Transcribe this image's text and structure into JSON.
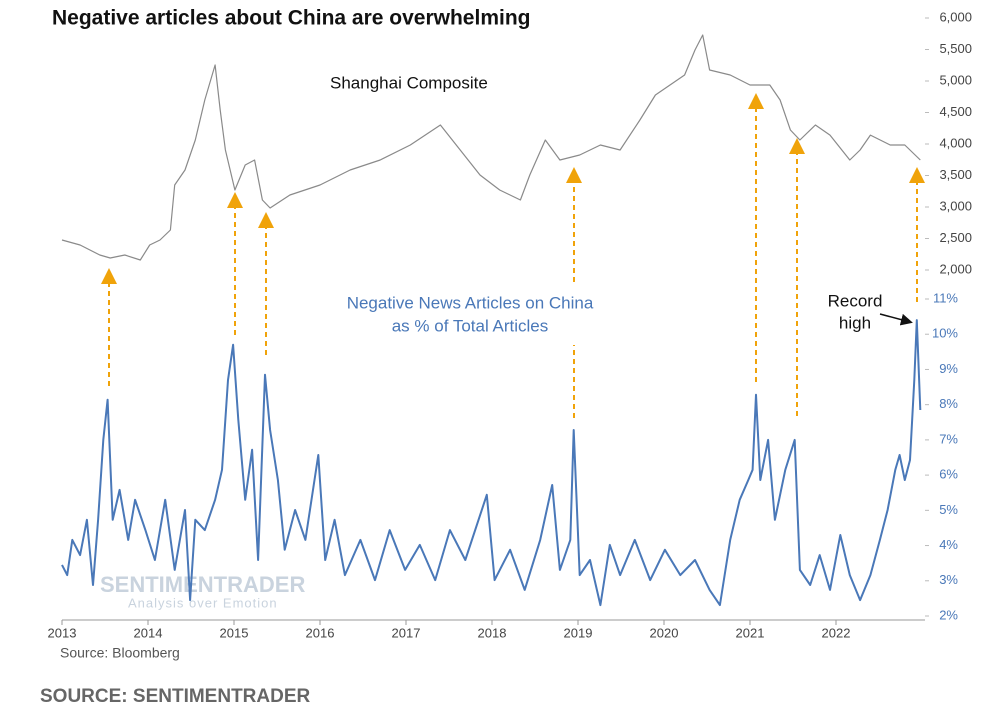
{
  "chart_data": {
    "type": "line",
    "title": "Negative articles about China are overwhelming",
    "annotations": {
      "shanghai": "Shanghai Composite",
      "news": [
        "Negative News Articles on China",
        "as % of Total Articles"
      ],
      "record": [
        "Record",
        "high"
      ],
      "source": "Source: Bloomberg",
      "watermark": [
        "SENTIMENTRADER",
        "Analysis over Emotion"
      ]
    },
    "footer": "SOURCE: SENTIMENTRADER",
    "xlim": [
      2013,
      2023
    ],
    "xticks": [
      2013,
      2014,
      2015,
      2016,
      2017,
      2018,
      2019,
      2020,
      2021,
      2022
    ],
    "ylim": [
      2,
      11
    ],
    "yticks": [
      {
        "value": 2,
        "label": "2%"
      },
      {
        "value": 3,
        "label": "3%"
      },
      {
        "value": 4,
        "label": "4%"
      },
      {
        "value": 5,
        "label": "5%"
      },
      {
        "value": 6,
        "label": "6%"
      },
      {
        "value": 7,
        "label": "7%"
      },
      {
        "value": 8,
        "label": "8%"
      },
      {
        "value": 9,
        "label": "9%"
      },
      {
        "value": 10,
        "label": "10%"
      },
      {
        "value": 11,
        "label": "11%"
      }
    ],
    "y2lim": [
      2000,
      6000
    ],
    "y2ticks": [
      {
        "value": 2000,
        "label": "2,000"
      },
      {
        "value": 2500,
        "label": "2,500"
      },
      {
        "value": 3000,
        "label": "3,000"
      },
      {
        "value": 3500,
        "label": "3,500"
      },
      {
        "value": 4000,
        "label": "4,000"
      },
      {
        "value": 4500,
        "label": "4,500"
      },
      {
        "value": 5000,
        "label": "5,000"
      },
      {
        "value": 5500,
        "label": "5,500"
      },
      {
        "value": 6000,
        "label": "6,000"
      }
    ],
    "series": [
      {
        "name": "Shanghai Composite",
        "color": "#8a8a8a",
        "axis": "y2",
        "x": [
          2013.0,
          2013.21,
          2013.44,
          2013.56,
          2013.73,
          2013.91,
          2014.02,
          2014.14,
          2014.26,
          2014.31,
          2014.43,
          2014.55,
          2014.66,
          2014.78,
          2014.84,
          2014.9,
          2015.01,
          2015.13,
          2015.24,
          2015.33,
          2015.42,
          2015.65,
          2016.0,
          2016.35,
          2016.7,
          2017.05,
          2017.4,
          2017.63,
          2017.86,
          2018.09,
          2018.33,
          2018.44,
          2018.62,
          2018.79,
          2019.02,
          2019.26,
          2019.49,
          2019.72,
          2019.9,
          2020.07,
          2020.24,
          2020.36,
          2020.45,
          2020.53,
          2020.77,
          2021.0,
          2021.23,
          2021.35,
          2021.47,
          2021.58,
          2021.76,
          2021.93,
          2022.16,
          2022.28,
          2022.4,
          2022.63,
          2022.8,
          2022.98
        ],
        "values": [
          2476,
          2397,
          2238,
          2190,
          2238,
          2159,
          2397,
          2476,
          2635,
          3349,
          3587,
          4063,
          4698,
          5254,
          4539,
          3905,
          3270,
          3667,
          3746,
          3111,
          2984,
          3190,
          3349,
          3587,
          3746,
          3984,
          4301,
          3905,
          3508,
          3270,
          3111,
          3508,
          4063,
          3746,
          3825,
          3984,
          3905,
          4381,
          4777,
          4936,
          5095,
          5492,
          5730,
          5175,
          5095,
          4936,
          4936,
          4698,
          4222,
          4063,
          4301,
          4142,
          3746,
          3905,
          4142,
          3984,
          3984,
          3746
        ]
      },
      {
        "name": "Negative News Articles on China as % of Total Articles",
        "color": "#4a78b8",
        "axis": "y",
        "x": [
          2013.0,
          2013.06,
          2013.12,
          2013.21,
          2013.29,
          2013.36,
          2013.42,
          2013.48,
          2013.53,
          2013.59,
          2013.67,
          2013.77,
          2013.85,
          2013.97,
          2014.08,
          2014.2,
          2014.31,
          2014.43,
          2014.49,
          2014.55,
          2014.66,
          2014.78,
          2014.86,
          2014.93,
          2014.99,
          2015.05,
          2015.13,
          2015.21,
          2015.28,
          2015.36,
          2015.42,
          2015.51,
          2015.59,
          2015.71,
          2015.83,
          2015.98,
          2016.06,
          2016.17,
          2016.29,
          2016.47,
          2016.64,
          2016.81,
          2016.99,
          2017.16,
          2017.34,
          2017.51,
          2017.69,
          2017.94,
          2018.03,
          2018.21,
          2018.38,
          2018.56,
          2018.7,
          2018.79,
          2018.91,
          2018.95,
          2019.02,
          2019.14,
          2019.26,
          2019.37,
          2019.49,
          2019.66,
          2019.84,
          2020.01,
          2020.19,
          2020.36,
          2020.53,
          2020.65,
          2020.77,
          2020.88,
          2020.98,
          2021.03,
          2021.07,
          2021.12,
          2021.21,
          2021.29,
          2021.41,
          2021.52,
          2021.58,
          2021.7,
          2021.81,
          2021.93,
          2022.05,
          2022.16,
          2022.28,
          2022.4,
          2022.51,
          2022.6,
          2022.69,
          2022.74,
          2022.8,
          2022.86,
          2022.91,
          2022.94,
          2022.98
        ],
        "values": [
          3.45,
          3.16,
          4.16,
          3.73,
          4.73,
          2.88,
          4.73,
          7.0,
          8.14,
          4.73,
          5.58,
          4.16,
          5.3,
          4.44,
          3.59,
          5.3,
          3.31,
          5.01,
          2.45,
          4.73,
          4.44,
          5.3,
          6.15,
          8.7,
          9.7,
          7.57,
          5.3,
          6.72,
          3.59,
          8.85,
          7.28,
          5.86,
          3.88,
          5.01,
          4.16,
          6.57,
          3.59,
          4.73,
          3.16,
          4.16,
          3.02,
          4.44,
          3.31,
          4.02,
          3.02,
          4.44,
          3.59,
          5.44,
          3.02,
          3.88,
          2.74,
          4.16,
          5.72,
          3.31,
          4.16,
          7.28,
          3.16,
          3.59,
          2.31,
          4.02,
          3.16,
          4.16,
          3.02,
          3.88,
          3.16,
          3.59,
          2.74,
          2.31,
          4.16,
          5.3,
          5.86,
          6.15,
          8.28,
          5.86,
          7.0,
          4.73,
          6.15,
          7.0,
          3.31,
          2.88,
          3.73,
          2.74,
          4.3,
          3.16,
          2.45,
          3.16,
          4.16,
          5.01,
          6.15,
          6.57,
          5.86,
          6.43,
          8.7,
          10.4,
          7.85
        ]
      }
    ]
  }
}
